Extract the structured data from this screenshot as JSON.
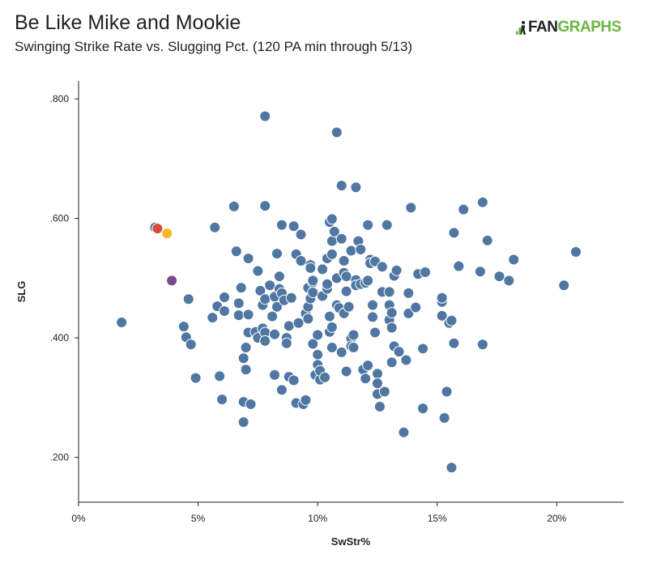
{
  "header": {
    "title": "Be Like Mike and Mookie",
    "subtitle": "Swinging Strike Rate vs. Slugging Pct. (120 PA min through 5/13)"
  },
  "logo": {
    "mark": ".il",
    "text_part1": "FAN",
    "text_part2": "GRAPHS",
    "color_fan": "#222222",
    "color_graphs": "#6ab743"
  },
  "chart_data": {
    "type": "scatter",
    "title": "Be Like Mike and Mookie",
    "subtitle": "Swinging Strike Rate vs. Slugging Pct. (120 PA min through 5/13)",
    "xlabel": "SwStr%",
    "ylabel": "SLG",
    "xlim": [
      0,
      0.228
    ],
    "ylim": [
      0.125,
      0.83
    ],
    "x_ticks": [
      0,
      0.05,
      0.1,
      0.15,
      0.2
    ],
    "x_tick_labels": [
      "0%",
      "5%",
      "10%",
      "15%",
      "20%"
    ],
    "y_ticks": [
      0.2,
      0.4,
      0.6,
      0.8
    ],
    "y_tick_labels": [
      ".200",
      ".400",
      ".600",
      ".800"
    ],
    "grid": false,
    "colors": {
      "default": "#4f77a1",
      "red": "#d94a3d",
      "gold": "#f5b82a",
      "purple": "#7a4a8c",
      "stroke": "#ffffff"
    },
    "highlighted": [
      {
        "x": 0.033,
        "y": 0.583,
        "color": "red"
      },
      {
        "x": 0.037,
        "y": 0.575,
        "color": "gold"
      },
      {
        "x": 0.039,
        "y": 0.496,
        "color": "purple"
      }
    ],
    "points": [
      [
        0.018,
        0.426
      ],
      [
        0.032,
        0.585
      ],
      [
        0.044,
        0.419
      ],
      [
        0.045,
        0.401
      ],
      [
        0.046,
        0.465
      ],
      [
        0.047,
        0.389
      ],
      [
        0.049,
        0.333
      ],
      [
        0.056,
        0.434
      ],
      [
        0.057,
        0.585
      ],
      [
        0.058,
        0.453
      ],
      [
        0.059,
        0.336
      ],
      [
        0.06,
        0.297
      ],
      [
        0.061,
        0.468
      ],
      [
        0.061,
        0.445
      ],
      [
        0.065,
        0.62
      ],
      [
        0.066,
        0.545
      ],
      [
        0.067,
        0.458
      ],
      [
        0.067,
        0.438
      ],
      [
        0.068,
        0.484
      ],
      [
        0.069,
        0.366
      ],
      [
        0.069,
        0.293
      ],
      [
        0.069,
        0.259
      ],
      [
        0.07,
        0.384
      ],
      [
        0.07,
        0.347
      ],
      [
        0.071,
        0.439
      ],
      [
        0.071,
        0.409
      ],
      [
        0.071,
        0.533
      ],
      [
        0.072,
        0.289
      ],
      [
        0.074,
        0.41
      ],
      [
        0.075,
        0.512
      ],
      [
        0.075,
        0.4
      ],
      [
        0.076,
        0.479
      ],
      [
        0.077,
        0.455
      ],
      [
        0.077,
        0.416
      ],
      [
        0.078,
        0.465
      ],
      [
        0.078,
        0.409
      ],
      [
        0.078,
        0.395
      ],
      [
        0.078,
        0.771
      ],
      [
        0.078,
        0.621
      ],
      [
        0.08,
        0.488
      ],
      [
        0.081,
        0.436
      ],
      [
        0.082,
        0.469
      ],
      [
        0.082,
        0.406
      ],
      [
        0.082,
        0.338
      ],
      [
        0.083,
        0.452
      ],
      [
        0.083,
        0.541
      ],
      [
        0.084,
        0.482
      ],
      [
        0.084,
        0.503
      ],
      [
        0.085,
        0.589
      ],
      [
        0.085,
        0.313
      ],
      [
        0.085,
        0.475
      ],
      [
        0.086,
        0.463
      ],
      [
        0.087,
        0.4
      ],
      [
        0.087,
        0.391
      ],
      [
        0.088,
        0.42
      ],
      [
        0.088,
        0.335
      ],
      [
        0.089,
        0.467
      ],
      [
        0.09,
        0.329
      ],
      [
        0.09,
        0.587
      ],
      [
        0.091,
        0.54
      ],
      [
        0.091,
        0.291
      ],
      [
        0.092,
        0.425
      ],
      [
        0.093,
        0.573
      ],
      [
        0.093,
        0.529
      ],
      [
        0.094,
        0.289
      ],
      [
        0.095,
        0.296
      ],
      [
        0.095,
        0.441
      ],
      [
        0.096,
        0.452
      ],
      [
        0.096,
        0.484
      ],
      [
        0.096,
        0.432
      ],
      [
        0.097,
        0.522
      ],
      [
        0.097,
        0.517
      ],
      [
        0.097,
        0.466
      ],
      [
        0.098,
        0.493
      ],
      [
        0.098,
        0.496
      ],
      [
        0.098,
        0.476
      ],
      [
        0.098,
        0.39
      ],
      [
        0.099,
        0.338
      ],
      [
        0.1,
        0.405
      ],
      [
        0.1,
        0.372
      ],
      [
        0.1,
        0.355
      ],
      [
        0.101,
        0.33
      ],
      [
        0.101,
        0.345
      ],
      [
        0.102,
        0.515
      ],
      [
        0.102,
        0.47
      ],
      [
        0.103,
        0.334
      ],
      [
        0.104,
        0.482
      ],
      [
        0.104,
        0.533
      ],
      [
        0.104,
        0.49
      ],
      [
        0.105,
        0.436
      ],
      [
        0.105,
        0.41
      ],
      [
        0.105,
        0.594
      ],
      [
        0.106,
        0.599
      ],
      [
        0.106,
        0.54
      ],
      [
        0.106,
        0.418
      ],
      [
        0.106,
        0.384
      ],
      [
        0.106,
        0.562
      ],
      [
        0.107,
        0.578
      ],
      [
        0.108,
        0.744
      ],
      [
        0.108,
        0.5
      ],
      [
        0.108,
        0.455
      ],
      [
        0.109,
        0.45
      ],
      [
        0.11,
        0.566
      ],
      [
        0.11,
        0.655
      ],
      [
        0.11,
        0.376
      ],
      [
        0.111,
        0.529
      ],
      [
        0.111,
        0.441
      ],
      [
        0.111,
        0.509
      ],
      [
        0.112,
        0.478
      ],
      [
        0.112,
        0.503
      ],
      [
        0.112,
        0.344
      ],
      [
        0.113,
        0.452
      ],
      [
        0.114,
        0.546
      ],
      [
        0.114,
        0.399
      ],
      [
        0.114,
        0.386
      ],
      [
        0.115,
        0.405
      ],
      [
        0.115,
        0.384
      ],
      [
        0.116,
        0.652
      ],
      [
        0.116,
        0.497
      ],
      [
        0.116,
        0.488
      ],
      [
        0.117,
        0.562
      ],
      [
        0.118,
        0.49
      ],
      [
        0.118,
        0.548
      ],
      [
        0.119,
        0.347
      ],
      [
        0.12,
        0.492
      ],
      [
        0.12,
        0.332
      ],
      [
        0.121,
        0.354
      ],
      [
        0.121,
        0.589
      ],
      [
        0.121,
        0.496
      ],
      [
        0.122,
        0.531
      ],
      [
        0.122,
        0.525
      ],
      [
        0.122,
        0.525
      ],
      [
        0.123,
        0.455
      ],
      [
        0.123,
        0.435
      ],
      [
        0.124,
        0.409
      ],
      [
        0.124,
        0.528
      ],
      [
        0.125,
        0.34
      ],
      [
        0.125,
        0.324
      ],
      [
        0.125,
        0.306
      ],
      [
        0.126,
        0.285
      ],
      [
        0.127,
        0.519
      ],
      [
        0.127,
        0.477
      ],
      [
        0.128,
        0.31
      ],
      [
        0.129,
        0.589
      ],
      [
        0.13,
        0.477
      ],
      [
        0.13,
        0.455
      ],
      [
        0.13,
        0.43
      ],
      [
        0.131,
        0.442
      ],
      [
        0.131,
        0.417
      ],
      [
        0.131,
        0.359
      ],
      [
        0.132,
        0.504
      ],
      [
        0.132,
        0.386
      ],
      [
        0.133,
        0.513
      ],
      [
        0.134,
        0.377
      ],
      [
        0.136,
        0.242
      ],
      [
        0.137,
        0.363
      ],
      [
        0.138,
        0.475
      ],
      [
        0.138,
        0.441
      ],
      [
        0.139,
        0.618
      ],
      [
        0.141,
        0.451
      ],
      [
        0.142,
        0.507
      ],
      [
        0.144,
        0.282
      ],
      [
        0.144,
        0.382
      ],
      [
        0.145,
        0.51
      ],
      [
        0.152,
        0.46
      ],
      [
        0.152,
        0.467
      ],
      [
        0.152,
        0.437
      ],
      [
        0.153,
        0.266
      ],
      [
        0.154,
        0.31
      ],
      [
        0.155,
        0.425
      ],
      [
        0.156,
        0.183
      ],
      [
        0.156,
        0.429
      ],
      [
        0.157,
        0.576
      ],
      [
        0.157,
        0.391
      ],
      [
        0.159,
        0.52
      ],
      [
        0.161,
        0.615
      ],
      [
        0.168,
        0.511
      ],
      [
        0.169,
        0.627
      ],
      [
        0.169,
        0.389
      ],
      [
        0.171,
        0.563
      ],
      [
        0.176,
        0.503
      ],
      [
        0.18,
        0.496
      ],
      [
        0.182,
        0.531
      ],
      [
        0.203,
        0.488
      ],
      [
        0.208,
        0.544
      ]
    ]
  }
}
